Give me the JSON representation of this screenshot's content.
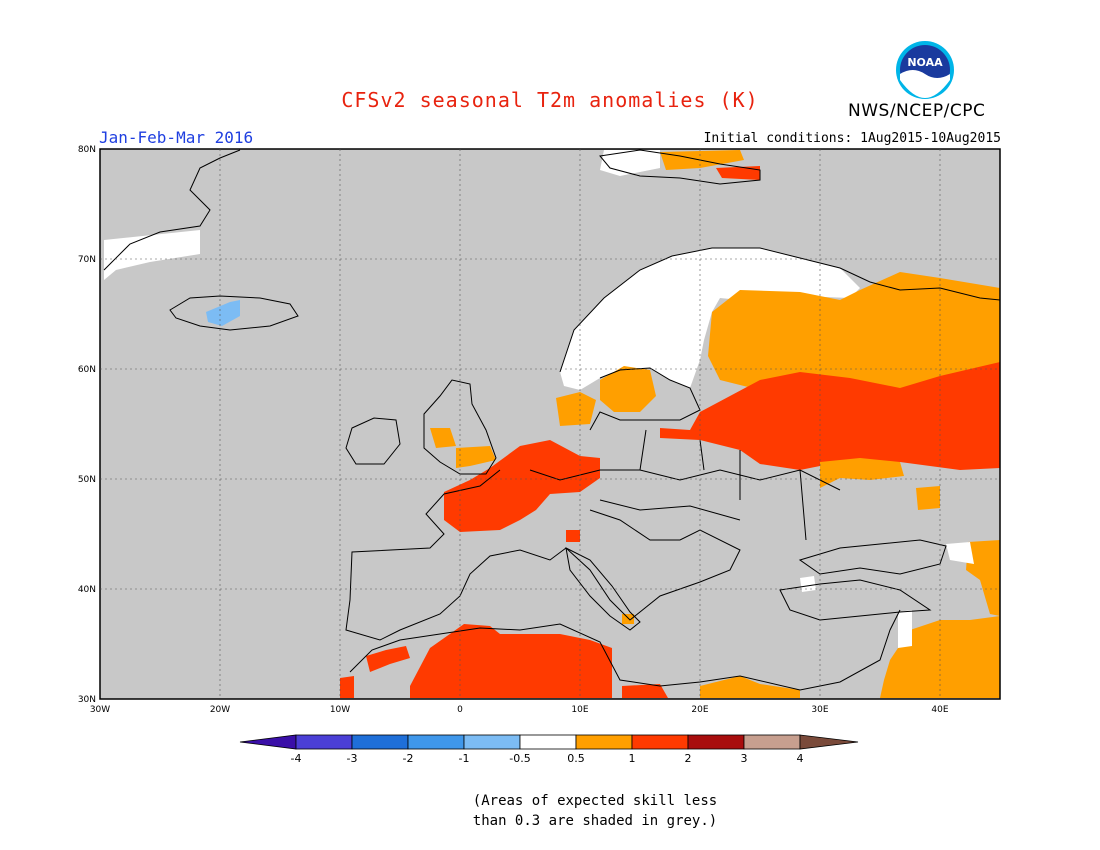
{
  "header": {
    "title": "CFSv2 seasonal T2m anomalies (K)",
    "agency": "NWS/NCEP/CPC",
    "period": "Jan-Feb-Mar 2016",
    "initial_conditions": "Initial conditions: 1Aug2015-10Aug2015"
  },
  "logo": {
    "icon": "noaa-logo-icon",
    "text": "NOAA"
  },
  "map": {
    "lon_range": [
      -30,
      45
    ],
    "lat_range": [
      30,
      80
    ],
    "lon_ticks": [
      "30W",
      "20W",
      "10W",
      "0",
      "10E",
      "20E",
      "30E",
      "40E"
    ],
    "lat_ticks": [
      "30N",
      "40N",
      "50N",
      "60N",
      "70N",
      "80N"
    ],
    "background_color": "#c8c8c8"
  },
  "legend": {
    "labels": [
      "-4",
      "-3",
      "-2",
      "-1",
      "-0.5",
      "0.5",
      "1",
      "2",
      "3",
      "4"
    ],
    "colors": [
      "#3a0fa8",
      "#4b3fd6",
      "#1f6fd8",
      "#3f97ea",
      "#7cbcf4",
      "#ffffff",
      "#ff9f00",
      "#ff3a00",
      "#a80d0d",
      "#c79f8f",
      "#7a4a3a"
    ]
  },
  "footnote": {
    "line1": "(Areas of expected skill less",
    "line2": "than 0.3 are shaded in grey.)"
  }
}
